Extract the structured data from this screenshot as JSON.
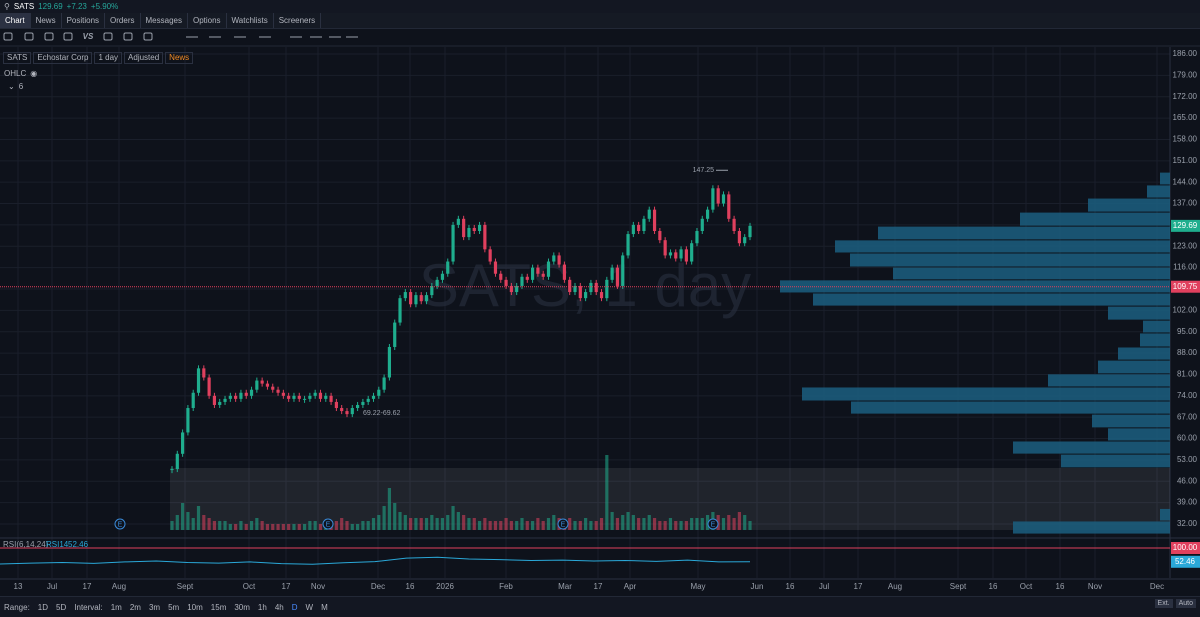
{
  "header": {
    "symbol": "SATS",
    "price": "129.69",
    "change": "+7.23",
    "change_pct": "+5.90%"
  },
  "tabs": [
    "Chart",
    "News",
    "Positions",
    "Orders",
    "Messages",
    "Options",
    "Watchlists",
    "Screeners"
  ],
  "toolbar_text": "VS",
  "chart_info": {
    "symbol": "SATS",
    "name": "Echostar Corp",
    "interval": "1 day",
    "adjustment": "Adjusted",
    "news": "News",
    "study": "OHLC",
    "collapsed_count": "6"
  },
  "chart_data": {
    "type": "candlestick",
    "watermark": "SATS, 1 day",
    "close": [
      50,
      55,
      62,
      70,
      75,
      83,
      80,
      74,
      71,
      72,
      73,
      74,
      73,
      75,
      74,
      76,
      79,
      78,
      77,
      76,
      75,
      74,
      73,
      74,
      73,
      73,
      74,
      75,
      73,
      74,
      72,
      70,
      69,
      68,
      70,
      71,
      72,
      73,
      74,
      76,
      80,
      90,
      98,
      106,
      108,
      104,
      107,
      105,
      107,
      110,
      112,
      114,
      118,
      130,
      132,
      126,
      129,
      128,
      130,
      122,
      118,
      114,
      112,
      110,
      108,
      110,
      113,
      112,
      116,
      114,
      113,
      118,
      120,
      117,
      112,
      108,
      110,
      106,
      108,
      111,
      108,
      106,
      112,
      116,
      110,
      120,
      127,
      130,
      128,
      132,
      135,
      128,
      125,
      120,
      121,
      119,
      122,
      118,
      124,
      128,
      132,
      135,
      142,
      137,
      140,
      132,
      128,
      124,
      126,
      129.69
    ],
    "volume": [
      3,
      5,
      9,
      6,
      4,
      8,
      5,
      4,
      3,
      3,
      3,
      2,
      2,
      3,
      2,
      3,
      4,
      3,
      2,
      2,
      2,
      2,
      2,
      2,
      2,
      2,
      3,
      3,
      2,
      2,
      3,
      3,
      4,
      3,
      2,
      2,
      3,
      3,
      4,
      5,
      8,
      14,
      9,
      6,
      5,
      4,
      4,
      4,
      4,
      5,
      4,
      4,
      5,
      8,
      6,
      5,
      4,
      4,
      3,
      4,
      3,
      3,
      3,
      4,
      3,
      3,
      4,
      3,
      3,
      4,
      3,
      4,
      5,
      4,
      3,
      4,
      3,
      3,
      4,
      3,
      3,
      4,
      25,
      6,
      4,
      5,
      6,
      5,
      4,
      4,
      5,
      4,
      3,
      3,
      4,
      3,
      3,
      3,
      4,
      4,
      4,
      5,
      6,
      5,
      4,
      5,
      4,
      6,
      5,
      3
    ],
    "up_color": "#1fae8e",
    "down_color": "#e0405e",
    "ylim": [
      32,
      186
    ],
    "yticks": [
      {
        "value": 186,
        "label": "186.00"
      },
      {
        "value": 179,
        "label": "179.00"
      },
      {
        "value": 172,
        "label": "172.00"
      },
      {
        "value": 165,
        "label": "165.00"
      },
      {
        "value": 158,
        "label": "158.00"
      },
      {
        "value": 151,
        "label": "151.00"
      },
      {
        "value": 144,
        "label": "144.00"
      },
      {
        "value": 137,
        "label": "137.00"
      },
      {
        "value": 130,
        "label": "130.00"
      },
      {
        "value": 123,
        "label": "123.00"
      },
      {
        "value": 116,
        "label": "116.00"
      },
      {
        "value": 109,
        "label": "109.00"
      },
      {
        "value": 102,
        "label": "102.00"
      },
      {
        "value": 95,
        "label": "95.00"
      },
      {
        "value": 88,
        "label": "88.00"
      },
      {
        "value": 81,
        "label": "81.00"
      },
      {
        "value": 74,
        "label": "74.00"
      },
      {
        "value": 67,
        "label": "67.00"
      },
      {
        "value": 60,
        "label": "60.00"
      },
      {
        "value": 53,
        "label": "53.00"
      },
      {
        "value": 46,
        "label": "46.00"
      },
      {
        "value": 39,
        "label": "39.00"
      },
      {
        "value": 32,
        "label": "32.00"
      }
    ],
    "last_price": 129.69,
    "crosshair_price": 109.75,
    "high_label": 147.25,
    "range_label": "69.22-69.62",
    "earnings": [
      "E",
      "E",
      "E",
      "E"
    ],
    "volume_profile": [
      {
        "low": 143.1,
        "high": 147.3,
        "volume": 1.0
      },
      {
        "low": 138.8,
        "high": 143.1,
        "volume": 2.3
      },
      {
        "low": 134.2,
        "high": 138.8,
        "volume": 8.2
      },
      {
        "low": 129.6,
        "high": 134.2,
        "volume": 15.0
      },
      {
        "low": 125.1,
        "high": 129.6,
        "volume": 29.2
      },
      {
        "low": 120.8,
        "high": 125.1,
        "volume": 33.5
      },
      {
        "low": 116.2,
        "high": 120.8,
        "volume": 32.0
      },
      {
        "low": 112.0,
        "high": 116.2,
        "volume": 27.7
      },
      {
        "low": 107.7,
        "high": 112.0,
        "volume": 39.0
      },
      {
        "low": 103.4,
        "high": 107.7,
        "volume": 35.7
      },
      {
        "low": 98.8,
        "high": 103.4,
        "volume": 6.2
      },
      {
        "low": 94.6,
        "high": 98.8,
        "volume": 2.7
      },
      {
        "low": 90.0,
        "high": 94.6,
        "volume": 3.0
      },
      {
        "low": 85.7,
        "high": 90.0,
        "volume": 5.2
      },
      {
        "low": 81.2,
        "high": 85.7,
        "volume": 7.2
      },
      {
        "low": 76.9,
        "high": 81.2,
        "volume": 12.2
      },
      {
        "low": 72.3,
        "high": 76.9,
        "volume": 36.8
      },
      {
        "low": 68.0,
        "high": 72.3,
        "volume": 31.9
      },
      {
        "low": 63.5,
        "high": 68.0,
        "volume": 7.8
      },
      {
        "low": 59.2,
        "high": 63.5,
        "volume": 6.2
      },
      {
        "low": 54.9,
        "high": 59.2,
        "volume": 15.7
      },
      {
        "low": 50.4,
        "high": 54.9,
        "volume": 10.9
      },
      {
        "low": 33.0,
        "high": 37.1,
        "volume": 1.0
      },
      {
        "low": 28.7,
        "high": 33.0,
        "volume": 15.7
      }
    ],
    "profile_color": "#1b5f80",
    "x_labels": [
      "13",
      "Jul",
      "17",
      "Aug",
      "Sept",
      "Oct",
      "17",
      "Nov",
      "Dec",
      "16",
      "2026",
      "Feb",
      "Mar",
      "17",
      "Apr",
      "May",
      "Jun",
      "16",
      "Jul",
      "17",
      "Aug",
      "Sept",
      "16",
      "Oct",
      "16",
      "Nov",
      "Dec"
    ],
    "rsi": {
      "label": "RSI(6,14,24)",
      "name": "RSI14",
      "last": 52.46,
      "ylim": [
        0,
        100
      ],
      "upper": {
        "value": 100,
        "label": "100.00"
      },
      "values": [
        45,
        48,
        50,
        47,
        52,
        55,
        50,
        48,
        52,
        46,
        44,
        49,
        53,
        65,
        68,
        62,
        60,
        57,
        58,
        55,
        57,
        54,
        58,
        52,
        52.46
      ],
      "color": "#2aa8d8"
    }
  },
  "bottom_bar": {
    "range_label": "Range:",
    "ranges": [
      "1D",
      "5D"
    ],
    "interval_label": "Interval:",
    "intervals": [
      "1m",
      "2m",
      "3m",
      "5m",
      "10m",
      "15m",
      "30m",
      "1h",
      "4h",
      "D",
      "W",
      "M"
    ],
    "right": [
      "Ext.",
      "Auto"
    ]
  }
}
